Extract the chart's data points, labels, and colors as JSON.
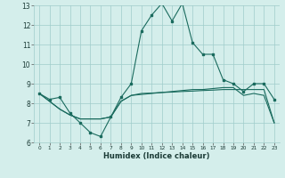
{
  "xlabel": "Humidex (Indice chaleur)",
  "bg_color": "#d4eeeb",
  "grid_color": "#a0ccca",
  "line_color": "#1a6b5e",
  "xlim": [
    -0.5,
    23.5
  ],
  "ylim": [
    6,
    13
  ],
  "x_ticks": [
    0,
    1,
    2,
    3,
    4,
    5,
    6,
    7,
    8,
    9,
    10,
    11,
    12,
    13,
    14,
    15,
    16,
    17,
    18,
    19,
    20,
    21,
    22,
    23
  ],
  "y_ticks": [
    6,
    7,
    8,
    9,
    10,
    11,
    12,
    13
  ],
  "line1_x": [
    0,
    1,
    2,
    3,
    4,
    5,
    6,
    7,
    8,
    9,
    10,
    11,
    12,
    13,
    14,
    15,
    16,
    17,
    18,
    19,
    20,
    21,
    22,
    23
  ],
  "line1_y": [
    8.5,
    8.2,
    8.3,
    7.5,
    7.0,
    6.5,
    6.3,
    7.3,
    8.3,
    9.0,
    11.7,
    12.5,
    13.1,
    12.2,
    13.1,
    11.1,
    10.5,
    10.5,
    9.2,
    9.0,
    8.6,
    9.0,
    9.0,
    8.2
  ],
  "line2_x": [
    0,
    1,
    2,
    3,
    4,
    5,
    6,
    7,
    8,
    9,
    10,
    11,
    12,
    13,
    14,
    15,
    16,
    17,
    18,
    19,
    20,
    21,
    22,
    23
  ],
  "line2_y": [
    8.5,
    8.1,
    7.7,
    7.4,
    7.2,
    7.2,
    7.2,
    7.3,
    8.1,
    8.4,
    8.5,
    8.52,
    8.55,
    8.57,
    8.6,
    8.62,
    8.65,
    8.67,
    8.7,
    8.7,
    8.7,
    8.7,
    8.7,
    7.0
  ],
  "line3_x": [
    0,
    1,
    2,
    3,
    4,
    5,
    6,
    7,
    8,
    9,
    10,
    11,
    12,
    13,
    14,
    15,
    16,
    17,
    18,
    19,
    20,
    21,
    22,
    23
  ],
  "line3_y": [
    8.5,
    8.1,
    7.7,
    7.4,
    7.2,
    7.2,
    7.2,
    7.3,
    8.1,
    8.4,
    8.45,
    8.5,
    8.55,
    8.6,
    8.65,
    8.7,
    8.7,
    8.75,
    8.8,
    8.8,
    8.4,
    8.5,
    8.4,
    7.0
  ]
}
